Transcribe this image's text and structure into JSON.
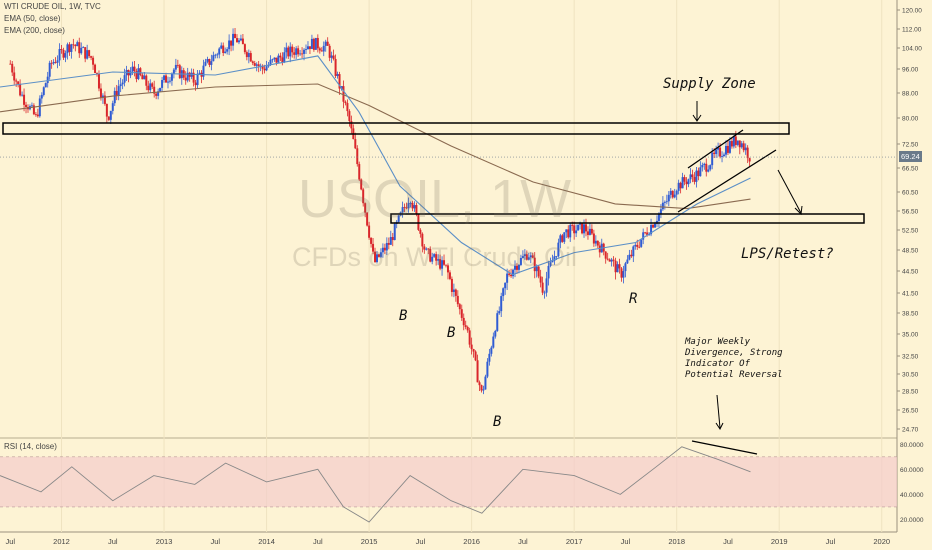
{
  "legend": {
    "title": "WTI CRUDE OIL, 1W, TVC",
    "ema50": "EMA (50, close)",
    "ema200": "EMA (200, close)",
    "rsi": "RSI (14, close)"
  },
  "watermark": {
    "symbol": "USOIL, 1W",
    "desc": "CFDs on WTI Crude Oil"
  },
  "annotations": {
    "supply_zone": "Supply Zone",
    "lps": "LPS/Retest?",
    "b1": "B",
    "b2": "B",
    "b3": "B",
    "r": "R",
    "divergence": [
      "Major Weekly",
      "Divergence, Strong",
      "Indicator Of",
      "Potential Reversal"
    ]
  },
  "last_price": "69.24",
  "colors": {
    "up": "#2f5bd3",
    "down": "#d9262b",
    "ema50": "#5b8fc7",
    "ema200": "#8a6a50",
    "rsi": "#888888",
    "rsi_band": "#f3cccc",
    "bg": "#fdf3d4"
  },
  "chart_data": {
    "type": "candlestick",
    "x_axis": {
      "ticks": [
        "Jul",
        "2012",
        "Jul",
        "2013",
        "Jul",
        "2014",
        "Jul",
        "2015",
        "Jul",
        "2016",
        "Jul",
        "2017",
        "Jul",
        "2018",
        "Jul",
        "2019",
        "Jul",
        "2020"
      ]
    },
    "y_axis": {
      "ticks": [
        "120.00",
        "112.00",
        "104.00",
        "96.00",
        "88.00",
        "80.00",
        "72.50",
        "66.50",
        "60.50",
        "56.50",
        "52.50",
        "48.50",
        "44.50",
        "41.50",
        "38.50",
        "35.00",
        "32.50",
        "30.50",
        "28.50",
        "26.50",
        "24.70"
      ],
      "range": [
        24.7,
        120
      ]
    },
    "price_path": [
      [
        "2011.50",
        98
      ],
      [
        "2011.60",
        88
      ],
      [
        "2011.75",
        80
      ],
      [
        "2011.90",
        98
      ],
      [
        "2012.10",
        106
      ],
      [
        "2012.30",
        100
      ],
      [
        "2012.45",
        80
      ],
      [
        "2012.55",
        90
      ],
      [
        "2012.70",
        96
      ],
      [
        "2012.90",
        88
      ],
      [
        "2013.10",
        96
      ],
      [
        "2013.30",
        92
      ],
      [
        "2013.55",
        104
      ],
      [
        "2013.70",
        108
      ],
      [
        "2013.95",
        96
      ],
      [
        "2014.20",
        102
      ],
      [
        "2014.45",
        106
      ],
      [
        "2014.60",
        104
      ],
      [
        "2014.80",
        80
      ],
      [
        "2014.95",
        58
      ],
      [
        "2015.05",
        46
      ],
      [
        "2015.20",
        50
      ],
      [
        "2015.40",
        60
      ],
      [
        "2015.55",
        48
      ],
      [
        "2015.75",
        45
      ],
      [
        "2015.95",
        36
      ],
      [
        "2016.10",
        28
      ],
      [
        "2016.35",
        44
      ],
      [
        "2016.55",
        48
      ],
      [
        "2016.70",
        42
      ],
      [
        "2016.90",
        52
      ],
      [
        "2017.10",
        53
      ],
      [
        "2017.30",
        48
      ],
      [
        "2017.45",
        44
      ],
      [
        "2017.60",
        49
      ],
      [
        "2017.80",
        55
      ],
      [
        "2018.00",
        62
      ],
      [
        "2018.20",
        65
      ],
      [
        "2018.40",
        70
      ],
      [
        "2018.60",
        74
      ],
      [
        "2018.72",
        69.24
      ]
    ],
    "ema50": [
      [
        "2011.40",
        90
      ],
      [
        "2012.50",
        95
      ],
      [
        "2013.50",
        94
      ],
      [
        "2014.50",
        101
      ],
      [
        "2014.90",
        82
      ],
      [
        "2015.30",
        62
      ],
      [
        "2015.90",
        50
      ],
      [
        "2016.40",
        44
      ],
      [
        "2017.00",
        48
      ],
      [
        "2017.60",
        50
      ],
      [
        "2018.20",
        58
      ],
      [
        "2018.72",
        64
      ]
    ],
    "ema200": [
      [
        "2011.40",
        82
      ],
      [
        "2012.50",
        87
      ],
      [
        "2013.50",
        90
      ],
      [
        "2014.50",
        91
      ],
      [
        "2015.00",
        84
      ],
      [
        "2015.80",
        72
      ],
      [
        "2016.60",
        63
      ],
      [
        "2017.40",
        58
      ],
      [
        "2018.10",
        57
      ],
      [
        "2018.72",
        59
      ]
    ],
    "rsi": {
      "ticks": [
        "80.0000",
        "60.0000",
        "40.0000",
        "20.0000"
      ],
      "range": [
        10,
        85
      ],
      "band": [
        30,
        70
      ],
      "path": [
        [
          "2011.40",
          55
        ],
        [
          "2011.80",
          42
        ],
        [
          "2012.10",
          62
        ],
        [
          "2012.50",
          35
        ],
        [
          "2012.90",
          55
        ],
        [
          "2013.30",
          48
        ],
        [
          "2013.60",
          65
        ],
        [
          "2014.00",
          50
        ],
        [
          "2014.50",
          60
        ],
        [
          "2014.75",
          30
        ],
        [
          "2015.00",
          18
        ],
        [
          "2015.40",
          55
        ],
        [
          "2015.80",
          35
        ],
        [
          "2016.10",
          25
        ],
        [
          "2016.50",
          60
        ],
        [
          "2017.00",
          55
        ],
        [
          "2017.45",
          40
        ],
        [
          "2017.80",
          62
        ],
        [
          "2018.05",
          78
        ],
        [
          "2018.40",
          68
        ],
        [
          "2018.72",
          58
        ]
      ]
    }
  }
}
